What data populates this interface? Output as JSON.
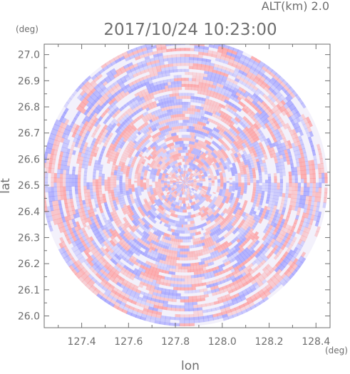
{
  "chart_data": {
    "type": "heatmap",
    "title": "2017/10/24 10:23:00",
    "subtitle": "ALT(km) 2.0",
    "xlabel": "lon",
    "ylabel": "lat",
    "xunit": "(deg)",
    "yunit": "(deg)",
    "xlim": [
      127.24,
      128.46
    ],
    "ylim": [
      25.955,
      27.04
    ],
    "x_ticks": [
      127.4,
      127.6,
      127.8,
      128.0,
      128.2,
      128.4
    ],
    "y_ticks": [
      26.0,
      26.1,
      26.2,
      26.3,
      26.4,
      26.5,
      26.6,
      26.7,
      26.8,
      26.9,
      27.0
    ],
    "x_tick_labels": [
      "127.4",
      "127.6",
      "127.8",
      "128.0",
      "128.2",
      "128.4"
    ],
    "y_tick_labels": [
      "26.0",
      "26.1",
      "26.2",
      "26.3",
      "26.4",
      "26.5",
      "26.6",
      "26.7",
      "26.8",
      "26.9",
      "27.0"
    ],
    "radar_center": {
      "lon": 127.84,
      "lat": 26.51
    },
    "radar_range_deg": {
      "lon": 0.61,
      "lat": 0.55
    },
    "colors": {
      "positive": "#ff8f8f",
      "negative": "#8f8fff",
      "neutral": "#ffffff",
      "axis": "#6e6e6e"
    },
    "grid": false,
    "legend": "none"
  }
}
